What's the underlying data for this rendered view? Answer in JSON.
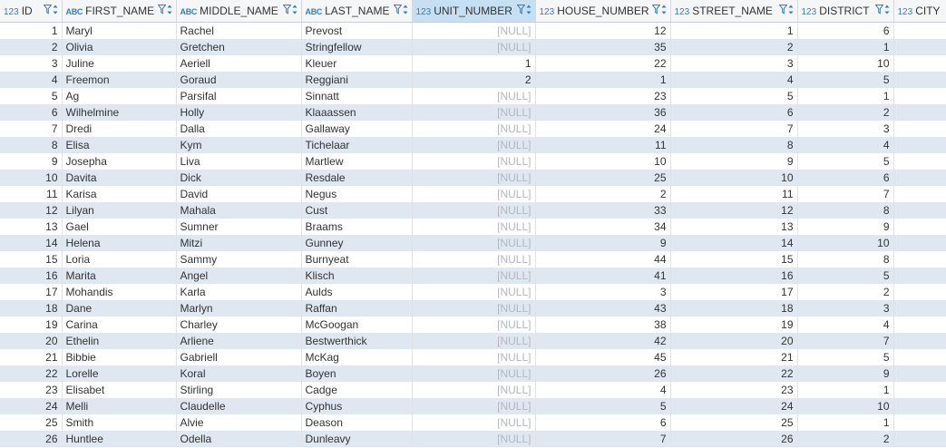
{
  "columns": [
    {
      "type": "123",
      "name": "ID"
    },
    {
      "type": "ABC",
      "name": "FIRST_NAME"
    },
    {
      "type": "ABC",
      "name": "MIDDLE_NAME"
    },
    {
      "type": "ABC",
      "name": "LAST_NAME"
    },
    {
      "type": "123",
      "name": "UNIT_NUMBER",
      "selected": true
    },
    {
      "type": "123",
      "name": "HOUSE_NUMBER"
    },
    {
      "type": "123",
      "name": "STREET_NAME"
    },
    {
      "type": "123",
      "name": "DISTRICT"
    },
    {
      "type": "123",
      "name": "CITY"
    }
  ],
  "null_label": "[NULL]",
  "rows": [
    {
      "id": "1",
      "first": "Maryl",
      "middle": "Rachel",
      "last": "Prevost",
      "unit": null,
      "house": "12",
      "street": "1",
      "district": "6"
    },
    {
      "id": "2",
      "first": "Olivia",
      "middle": "Gretchen",
      "last": "Stringfellow",
      "unit": null,
      "house": "35",
      "street": "2",
      "district": "1"
    },
    {
      "id": "3",
      "first": "Juline",
      "middle": "Aeriell",
      "last": "Kleuer",
      "unit": "1",
      "house": "22",
      "street": "3",
      "district": "10"
    },
    {
      "id": "4",
      "first": "Freemon",
      "middle": "Goraud",
      "last": "Reggiani",
      "unit": "2",
      "house": "1",
      "street": "4",
      "district": "5"
    },
    {
      "id": "5",
      "first": "Ag",
      "middle": "Parsifal",
      "last": "Sinnatt",
      "unit": null,
      "house": "23",
      "street": "5",
      "district": "1"
    },
    {
      "id": "6",
      "first": "Wilhelmine",
      "middle": "Holly",
      "last": "Klaaassen",
      "unit": null,
      "house": "36",
      "street": "6",
      "district": "2"
    },
    {
      "id": "7",
      "first": "Dredi",
      "middle": "Dalla",
      "last": "Gallaway",
      "unit": null,
      "house": "24",
      "street": "7",
      "district": "3"
    },
    {
      "id": "8",
      "first": "Elisa",
      "middle": "Kym",
      "last": "Tichelaar",
      "unit": null,
      "house": "11",
      "street": "8",
      "district": "4"
    },
    {
      "id": "9",
      "first": "Josepha",
      "middle": "Liva",
      "last": "Martlew",
      "unit": null,
      "house": "10",
      "street": "9",
      "district": "5"
    },
    {
      "id": "10",
      "first": "Davita",
      "middle": "Dick",
      "last": "Resdale",
      "unit": null,
      "house": "25",
      "street": "10",
      "district": "6"
    },
    {
      "id": "11",
      "first": "Karisa",
      "middle": "David",
      "last": "Negus",
      "unit": null,
      "house": "2",
      "street": "11",
      "district": "7"
    },
    {
      "id": "12",
      "first": "Lilyan",
      "middle": "Mahala",
      "last": "Cust",
      "unit": null,
      "house": "33",
      "street": "12",
      "district": "8"
    },
    {
      "id": "13",
      "first": "Gael",
      "middle": "Sumner",
      "last": "Braams",
      "unit": null,
      "house": "34",
      "street": "13",
      "district": "9"
    },
    {
      "id": "14",
      "first": "Helena",
      "middle": "Mitzi",
      "last": "Gunney",
      "unit": null,
      "house": "9",
      "street": "14",
      "district": "10"
    },
    {
      "id": "15",
      "first": "Loria",
      "middle": "Sammy",
      "last": "Burnyeat",
      "unit": null,
      "house": "44",
      "street": "15",
      "district": "8"
    },
    {
      "id": "16",
      "first": "Marita",
      "middle": "Angel",
      "last": "Klisch",
      "unit": null,
      "house": "41",
      "street": "16",
      "district": "5"
    },
    {
      "id": "17",
      "first": "Mohandis",
      "middle": "Karla",
      "last": "Aulds",
      "unit": null,
      "house": "3",
      "street": "17",
      "district": "2"
    },
    {
      "id": "18",
      "first": "Dane",
      "middle": "Marlyn",
      "last": "Raffan",
      "unit": null,
      "house": "43",
      "street": "18",
      "district": "3"
    },
    {
      "id": "19",
      "first": "Carina",
      "middle": "Charley",
      "last": "McGoogan",
      "unit": null,
      "house": "38",
      "street": "19",
      "district": "4"
    },
    {
      "id": "20",
      "first": "Ethelin",
      "middle": "Arliene",
      "last": "Bestwerthick",
      "unit": null,
      "house": "42",
      "street": "20",
      "district": "7"
    },
    {
      "id": "21",
      "first": "Bibbie",
      "middle": "Gabriell",
      "last": "McKag",
      "unit": null,
      "house": "45",
      "street": "21",
      "district": "5"
    },
    {
      "id": "22",
      "first": "Lorelle",
      "middle": "Koral",
      "last": "Boyen",
      "unit": null,
      "house": "26",
      "street": "22",
      "district": "9"
    },
    {
      "id": "23",
      "first": "Elisabet",
      "middle": "Stirling",
      "last": "Cadge",
      "unit": null,
      "house": "4",
      "street": "23",
      "district": "1"
    },
    {
      "id": "24",
      "first": "Melli",
      "middle": "Claudelle",
      "last": "Cyphus",
      "unit": null,
      "house": "5",
      "street": "24",
      "district": "10"
    },
    {
      "id": "25",
      "first": "Smith",
      "middle": "Alvie",
      "last": "Deason",
      "unit": null,
      "house": "6",
      "street": "25",
      "district": "1"
    },
    {
      "id": "26",
      "first": "Huntlee",
      "middle": "Odella",
      "last": "Dunleavy",
      "unit": null,
      "house": "7",
      "street": "26",
      "district": "2"
    }
  ],
  "icons": {
    "filter": "filter-icon",
    "sort": "sort-icon"
  },
  "colors": {
    "type_badge": "#2f7fc2",
    "selected_header": "#c7dff3",
    "alt_row": "#dfe7f1",
    "null_text": "#b2b8bf"
  }
}
